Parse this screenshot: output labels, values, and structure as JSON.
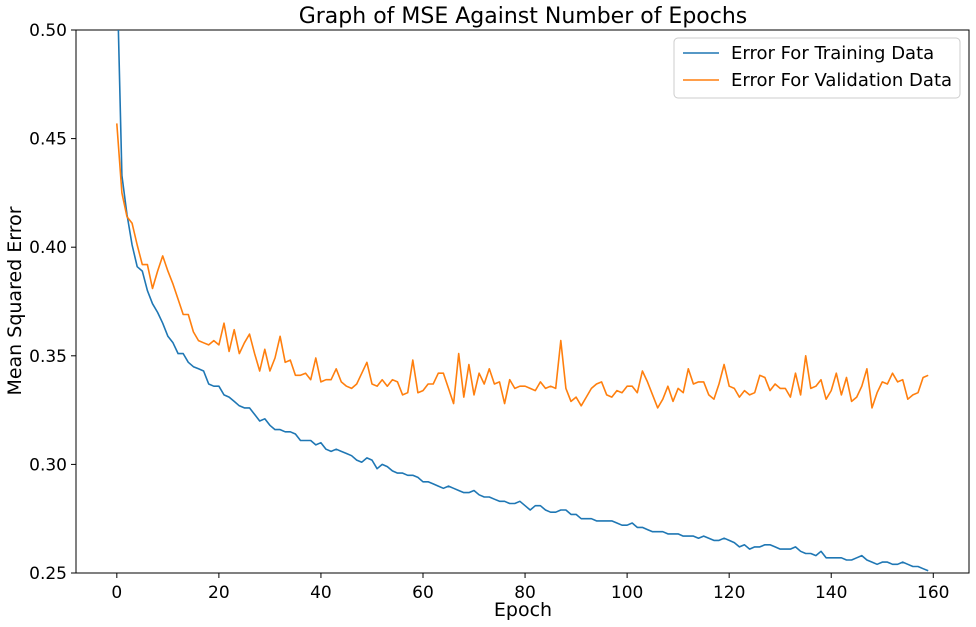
{
  "chart_data": {
    "type": "line",
    "title": "Graph of MSE Against Number of Epochs",
    "xlabel": "Epoch",
    "ylabel": "Mean Squared Error",
    "xlim": [
      -8,
      167
    ],
    "ylim": [
      0.25,
      0.5
    ],
    "xticks": [
      0,
      20,
      40,
      60,
      80,
      100,
      120,
      140,
      160
    ],
    "yticks": [
      0.25,
      0.3,
      0.35,
      0.4,
      0.45,
      0.5
    ],
    "xtick_labels": [
      "0",
      "20",
      "40",
      "60",
      "80",
      "100",
      "120",
      "140",
      "160"
    ],
    "ytick_labels": [
      "0.25",
      "0.30",
      "0.35",
      "0.40",
      "0.45",
      "0.50"
    ],
    "grid": false,
    "legend_position": "top-right",
    "series": [
      {
        "name": "Error For Training Data",
        "color": "#1f77b4",
        "x_start": 0,
        "values": [
          0.53,
          0.433,
          0.415,
          0.401,
          0.391,
          0.389,
          0.38,
          0.374,
          0.37,
          0.365,
          0.359,
          0.356,
          0.351,
          0.351,
          0.347,
          0.345,
          0.344,
          0.343,
          0.337,
          0.336,
          0.336,
          0.332,
          0.331,
          0.329,
          0.327,
          0.326,
          0.326,
          0.323,
          0.32,
          0.321,
          0.318,
          0.316,
          0.316,
          0.315,
          0.315,
          0.314,
          0.311,
          0.311,
          0.311,
          0.309,
          0.31,
          0.307,
          0.306,
          0.307,
          0.306,
          0.305,
          0.304,
          0.302,
          0.301,
          0.303,
          0.302,
          0.298,
          0.3,
          0.299,
          0.297,
          0.296,
          0.296,
          0.295,
          0.295,
          0.294,
          0.292,
          0.292,
          0.291,
          0.29,
          0.289,
          0.29,
          0.289,
          0.288,
          0.287,
          0.287,
          0.288,
          0.286,
          0.285,
          0.285,
          0.284,
          0.283,
          0.283,
          0.282,
          0.282,
          0.283,
          0.281,
          0.279,
          0.281,
          0.281,
          0.279,
          0.278,
          0.278,
          0.279,
          0.279,
          0.277,
          0.277,
          0.275,
          0.275,
          0.275,
          0.274,
          0.274,
          0.274,
          0.274,
          0.273,
          0.272,
          0.272,
          0.273,
          0.271,
          0.271,
          0.27,
          0.269,
          0.269,
          0.269,
          0.268,
          0.268,
          0.268,
          0.267,
          0.267,
          0.267,
          0.266,
          0.267,
          0.266,
          0.265,
          0.265,
          0.266,
          0.265,
          0.264,
          0.262,
          0.263,
          0.261,
          0.262,
          0.262,
          0.263,
          0.263,
          0.262,
          0.261,
          0.261,
          0.261,
          0.262,
          0.26,
          0.259,
          0.259,
          0.258,
          0.26,
          0.257,
          0.257,
          0.257,
          0.257,
          0.256,
          0.256,
          0.257,
          0.258,
          0.256,
          0.255,
          0.254,
          0.255,
          0.255,
          0.254,
          0.254,
          0.255,
          0.254,
          0.253,
          0.253,
          0.252,
          0.251
        ]
      },
      {
        "name": "Error For Validation Data",
        "color": "#ff7f0e",
        "x_start": 0,
        "values": [
          0.457,
          0.425,
          0.414,
          0.411,
          0.401,
          0.392,
          0.392,
          0.381,
          0.389,
          0.396,
          0.389,
          0.383,
          0.376,
          0.369,
          0.369,
          0.361,
          0.357,
          0.356,
          0.355,
          0.357,
          0.355,
          0.365,
          0.352,
          0.362,
          0.351,
          0.356,
          0.36,
          0.351,
          0.343,
          0.353,
          0.343,
          0.349,
          0.359,
          0.347,
          0.348,
          0.341,
          0.341,
          0.342,
          0.339,
          0.349,
          0.338,
          0.339,
          0.339,
          0.344,
          0.338,
          0.336,
          0.335,
          0.337,
          0.342,
          0.347,
          0.337,
          0.336,
          0.339,
          0.336,
          0.339,
          0.338,
          0.332,
          0.333,
          0.348,
          0.333,
          0.334,
          0.337,
          0.337,
          0.342,
          0.342,
          0.335,
          0.328,
          0.351,
          0.331,
          0.346,
          0.332,
          0.342,
          0.337,
          0.344,
          0.337,
          0.338,
          0.328,
          0.339,
          0.335,
          0.336,
          0.336,
          0.335,
          0.334,
          0.338,
          0.335,
          0.336,
          0.335,
          0.357,
          0.335,
          0.329,
          0.331,
          0.327,
          0.331,
          0.335,
          0.337,
          0.338,
          0.332,
          0.331,
          0.334,
          0.333,
          0.336,
          0.336,
          0.333,
          0.343,
          0.338,
          0.332,
          0.326,
          0.33,
          0.336,
          0.329,
          0.335,
          0.333,
          0.344,
          0.337,
          0.338,
          0.338,
          0.332,
          0.33,
          0.337,
          0.346,
          0.336,
          0.335,
          0.331,
          0.334,
          0.332,
          0.333,
          0.341,
          0.34,
          0.334,
          0.337,
          0.335,
          0.335,
          0.331,
          0.342,
          0.332,
          0.35,
          0.335,
          0.336,
          0.339,
          0.33,
          0.334,
          0.342,
          0.332,
          0.34,
          0.329,
          0.331,
          0.336,
          0.344,
          0.326,
          0.333,
          0.338,
          0.337,
          0.342,
          0.338,
          0.339,
          0.33,
          0.332,
          0.333,
          0.34,
          0.341
        ]
      }
    ]
  }
}
